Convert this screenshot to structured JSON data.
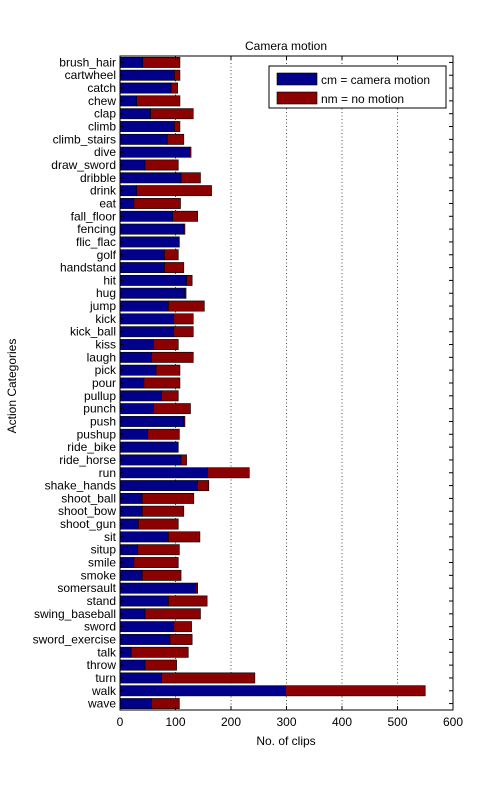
{
  "chart_data": {
    "type": "bar",
    "orientation": "horizontal",
    "stacked": true,
    "title": "Camera motion",
    "xlabel": "No. of clips",
    "ylabel": "Action Categories",
    "xlim": [
      0,
      600
    ],
    "xticks": [
      0,
      100,
      200,
      300,
      400,
      500,
      600
    ],
    "grid": true,
    "legend_position": "top-right",
    "categories": [
      "brush_hair",
      "cartwheel",
      "catch",
      "chew",
      "clap",
      "climb",
      "climb_stairs",
      "dive",
      "draw_sword",
      "dribble",
      "drink",
      "eat",
      "fall_floor",
      "fencing",
      "flic_flac",
      "golf",
      "handstand",
      "hit",
      "hug",
      "jump",
      "kick",
      "kick_ball",
      "kiss",
      "laugh",
      "pick",
      "pour",
      "pullup",
      "punch",
      "push",
      "pushup",
      "ride_bike",
      "ride_horse",
      "run",
      "shake_hands",
      "shoot_ball",
      "shoot_bow",
      "shoot_gun",
      "sit",
      "situp",
      "smile",
      "smoke",
      "somersault",
      "stand",
      "swing_baseball",
      "sword",
      "sword_exercise",
      "talk",
      "throw",
      "turn",
      "walk",
      "wave"
    ],
    "series": [
      {
        "name": "cm = camera motion",
        "color": "#00008B",
        "values": [
          41,
          98,
          92,
          30,
          55,
          98,
          85,
          125,
          45,
          110,
          30,
          25,
          95,
          115,
          107,
          80,
          80,
          120,
          117,
          87,
          97,
          97,
          60,
          57,
          65,
          43,
          75,
          60,
          115,
          50,
          105,
          110,
          158,
          140,
          40,
          40,
          33,
          87,
          32,
          25,
          40,
          137,
          87,
          45,
          97,
          90,
          20,
          45,
          75,
          298,
          57
        ]
      },
      {
        "name": "nm = no motion",
        "color": "#8B0000",
        "values": [
          67,
          10,
          12,
          78,
          77,
          10,
          30,
          3,
          60,
          35,
          135,
          84,
          45,
          2,
          0,
          25,
          35,
          10,
          2,
          65,
          35,
          35,
          45,
          75,
          43,
          65,
          30,
          67,
          2,
          57,
          0,
          10,
          75,
          20,
          93,
          75,
          72,
          57,
          75,
          80,
          70,
          3,
          70,
          100,
          32,
          40,
          103,
          57,
          168,
          252,
          50
        ]
      }
    ]
  }
}
